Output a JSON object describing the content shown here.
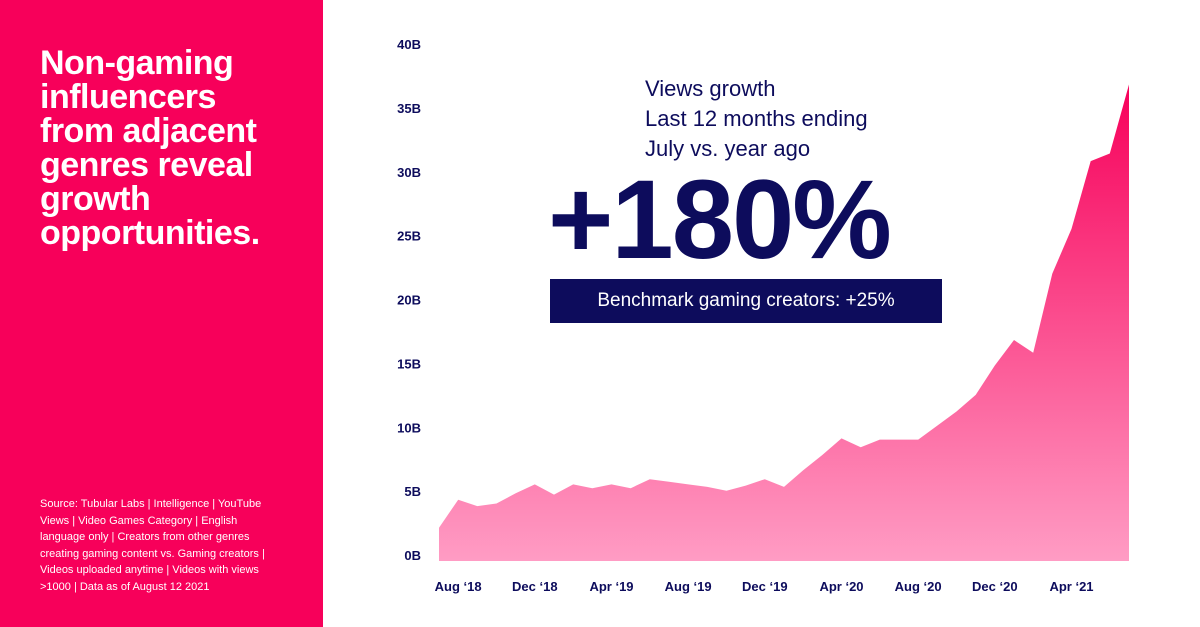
{
  "left_panel": {
    "headline_lines": [
      "Non-gaming",
      "influencers",
      "from adjacent",
      "genres reveal",
      "growth",
      "opportunities."
    ],
    "source_lines": [
      "Source: Tubular Labs | Intelligence | YouTube",
      "Views | Video Games Category | English",
      "language only | Creators from other genres",
      "creating gaming content vs. Gaming creators |",
      "Videos uploaded anytime | Videos with views",
      ">1000 | Data as of August 12 2021"
    ]
  },
  "callout": {
    "lines": [
      "Views growth",
      "Last 12 months ending",
      "July vs. year ago"
    ],
    "big_number": "+180%",
    "benchmark": "Benchmark gaming creators: +25%"
  },
  "colors": {
    "panel": "#f7005a",
    "navy": "#0d0c5c",
    "area_top": "#f7005a",
    "area_bottom": "#ff9cc4"
  },
  "chart_data": {
    "type": "area",
    "y_unit": "B",
    "ylim": [
      0,
      40
    ],
    "y_ticks": [
      "0B",
      "5B",
      "10B",
      "15B",
      "20B",
      "25B",
      "30B",
      "35B",
      "40B"
    ],
    "x_ticks": [
      "Aug ‘18",
      "Dec ‘18",
      "Apr ‘19",
      "Aug ‘19",
      "Dec ‘19",
      "Apr ‘20",
      "Aug ‘20",
      "Dec ‘20",
      "Apr ‘21"
    ],
    "x_tick_index": [
      1,
      5,
      9,
      13,
      17,
      21,
      25,
      29,
      33
    ],
    "x": [
      "Jul 2018",
      "Aug 2018",
      "Sep 2018",
      "Oct 2018",
      "Nov 2018",
      "Dec 2018",
      "Jan 2019",
      "Feb 2019",
      "Mar 2019",
      "Apr 2019",
      "May 2019",
      "Jun 2019",
      "Jul 2019",
      "Aug 2019",
      "Sep 2019",
      "Oct 2019",
      "Nov 2019",
      "Dec 2019",
      "Jan 2020",
      "Feb 2020",
      "Mar 2020",
      "Apr 2020",
      "May 2020",
      "Jun 2020",
      "Jul 2020",
      "Aug 2020",
      "Sep 2020",
      "Oct 2020",
      "Nov 2020",
      "Dec 2020",
      "Jan 2021",
      "Feb 2021",
      "Mar 2021",
      "Apr 2021",
      "May 2021",
      "Jun 2021",
      "Jul 2021"
    ],
    "series": [
      {
        "values": [
          2.6,
          4.8,
          4.3,
          4.5,
          5.3,
          6.0,
          5.2,
          6.0,
          5.7,
          6.0,
          5.7,
          6.4,
          6.2,
          6.0,
          5.8,
          5.5,
          5.9,
          6.4,
          5.8,
          7.1,
          8.3,
          9.6,
          8.9,
          9.5,
          9.5,
          9.5,
          10.6,
          11.7,
          13.0,
          15.3,
          17.3,
          16.3,
          22.5,
          26.0,
          31.3,
          31.9,
          37.3
        ]
      }
    ]
  }
}
